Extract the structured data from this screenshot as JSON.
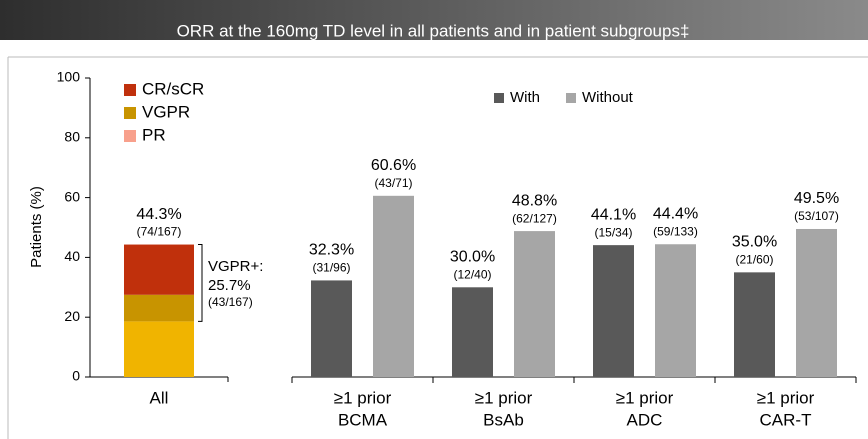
{
  "chart_data": [
    {
      "type": "stacked_bar",
      "title": "ORR at the 160mg TD level in all patients and in patient subgroups‡",
      "ylabel": "Patients (%)",
      "categories": [
        "All"
      ],
      "series": [
        {
          "name": "PR",
          "color": "#f0b400",
          "legend_color": "#f8a08c",
          "values": [
            18.6
          ]
        },
        {
          "name": "VGPR",
          "color": "#c89400",
          "legend_color": "#c89400",
          "values": [
            8.9
          ]
        },
        {
          "name": "CR/sCR",
          "color": "#c0300c",
          "legend_color": "#c0300c",
          "values": [
            16.8
          ]
        }
      ],
      "total": {
        "value": 44.3,
        "value_label": "44.3%",
        "n_label": "(74/167)"
      },
      "annotation": {
        "text": "VGPR+:",
        "value": 25.7,
        "value_label": "25.7%",
        "n_label": "(43/167)"
      },
      "ylim": [
        0,
        100
      ],
      "yticks": [
        0,
        20,
        40,
        60,
        80,
        100
      ]
    },
    {
      "type": "grouped_bar",
      "categories": [
        [
          "≥1 prior",
          "BCMA"
        ],
        [
          "≥1 prior",
          "BsAb"
        ],
        [
          "≥1 prior",
          "ADC"
        ],
        [
          "≥1 prior",
          "CAR-T"
        ]
      ],
      "series": [
        {
          "name": "With",
          "color": "#595959",
          "values": [
            32.3,
            30.0,
            44.1,
            35.0
          ],
          "value_labels": [
            "32.3%",
            "30.0%",
            "44.1%",
            "35.0%"
          ],
          "n_labels": [
            "(31/96)",
            "(12/40)",
            "(15/34)",
            "(21/60)"
          ]
        },
        {
          "name": "Without",
          "color": "#a6a6a6",
          "values": [
            60.6,
            48.8,
            44.4,
            49.5
          ],
          "value_labels": [
            "60.6%",
            "48.8%",
            "44.4%",
            "49.5%"
          ],
          "n_labels": [
            "(43/71)",
            "(62/127)",
            "(59/133)",
            "(53/107)"
          ]
        }
      ],
      "ylim": [
        0,
        100
      ]
    }
  ]
}
